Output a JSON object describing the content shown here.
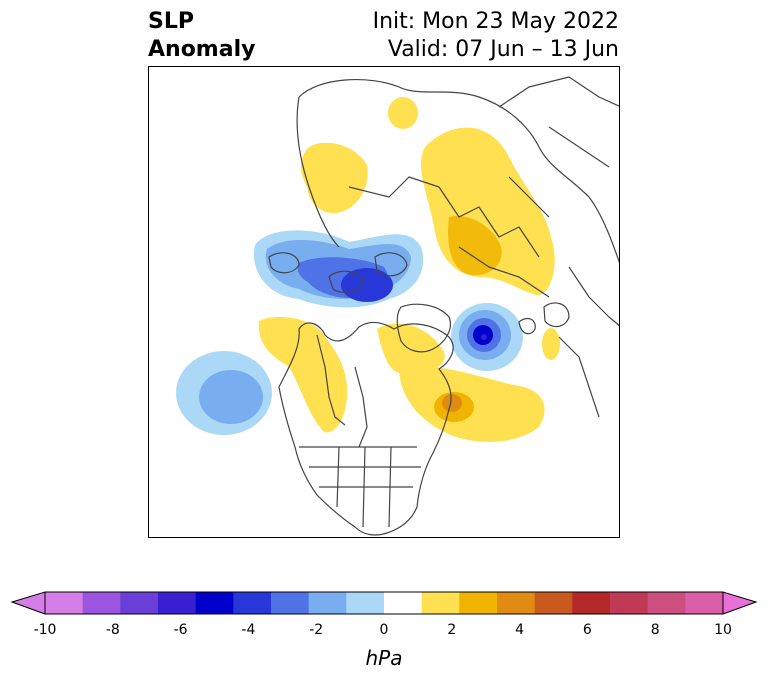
{
  "title": {
    "left_line1": "SLP",
    "left_line2": "Anomaly",
    "right_line1": "Init: Mon 23 May 2022",
    "right_line2": "Valid: 07 Jun – 13 Jun"
  },
  "colorbar": {
    "unit": "hPa",
    "ticks": [
      "-10",
      "-8",
      "-6",
      "-4",
      "-2",
      "0",
      "2",
      "4",
      "6",
      "8",
      "10"
    ],
    "colors": [
      "#d67ee8",
      "#9b55e0",
      "#6a3fd8",
      "#3a1fd2",
      "#0000cd",
      "#2838d8",
      "#4f72e6",
      "#78aeef",
      "#acd8f7",
      "#ffffff",
      "#ffe050",
      "#f0b400",
      "#e08c14",
      "#c85a1e",
      "#b42828",
      "#c03a56",
      "#cc4f80",
      "#d95fa8"
    ],
    "extend_left_color": "#d67ee8",
    "extend_right_color": "#e870d8"
  }
}
